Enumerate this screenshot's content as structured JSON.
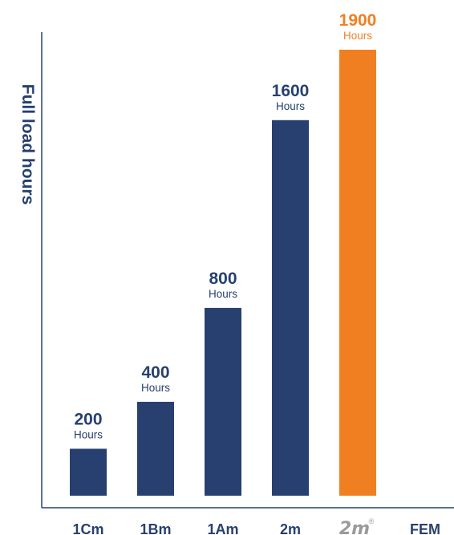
{
  "chart_data": {
    "type": "bar",
    "ylabel": "Full load hours",
    "categories": [
      "1Cm",
      "1Bm",
      "1Am",
      "2m",
      "2m",
      "FEM"
    ],
    "values": [
      200,
      400,
      800,
      1600,
      1900,
      null
    ],
    "value_labels": [
      "200",
      "400",
      "800",
      "1600",
      "1900",
      ""
    ],
    "unit_label": "Hours",
    "highlight_index": 4,
    "highlight_category_is_logo": true,
    "logo_mark": "®",
    "ylim": [
      -400,
      1900
    ],
    "grid": false,
    "legend": "none",
    "colors": {
      "bar": "#27406f",
      "highlight": "#f07f21",
      "axis": "#27406f",
      "text": "#27406f",
      "logo": "#9a9a9a"
    }
  }
}
